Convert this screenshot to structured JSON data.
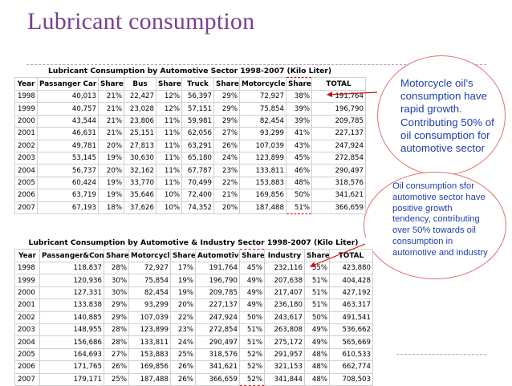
{
  "slide": {
    "title": "Lubricant consumption"
  },
  "table1": {
    "title": "Lubricant Consumption by Automotive Sector 1998-2007 (Kilo Liter)",
    "headers": [
      "Year",
      "Passanger Car",
      "Share",
      "Bus",
      "Share",
      "Truck",
      "Share",
      "Motorcycle",
      "Share",
      "TOTAL"
    ],
    "rows": [
      [
        "1998",
        "40,013",
        "21%",
        "22,427",
        "12%",
        "56,397",
        "29%",
        "72,927",
        "38%",
        "191,764"
      ],
      [
        "1999",
        "40,757",
        "21%",
        "23,028",
        "12%",
        "57,151",
        "29%",
        "75,854",
        "39%",
        "196,790"
      ],
      [
        "2000",
        "43,544",
        "21%",
        "23,806",
        "11%",
        "59,981",
        "29%",
        "82,454",
        "39%",
        "209,785"
      ],
      [
        "2001",
        "46,631",
        "21%",
        "25,151",
        "11%",
        "62,056",
        "27%",
        "93,299",
        "41%",
        "227,137"
      ],
      [
        "2002",
        "49,781",
        "20%",
        "27,813",
        "11%",
        "63,291",
        "26%",
        "107,039",
        "43%",
        "247,924"
      ],
      [
        "2003",
        "53,145",
        "19%",
        "30,630",
        "11%",
        "65,180",
        "24%",
        "123,899",
        "45%",
        "272,854"
      ],
      [
        "2004",
        "56,737",
        "20%",
        "32,162",
        "11%",
        "67,787",
        "23%",
        "133,811",
        "46%",
        "290,497"
      ],
      [
        "2005",
        "60,424",
        "19%",
        "33,770",
        "11%",
        "70,499",
        "22%",
        "153,883",
        "48%",
        "318,576"
      ],
      [
        "2006",
        "63,719",
        "19%",
        "35,646",
        "10%",
        "72,400",
        "21%",
        "169,856",
        "50%",
        "341,621"
      ],
      [
        "2007",
        "67,193",
        "18%",
        "37,626",
        "10%",
        "74,352",
        "20%",
        "187,488",
        "51%",
        "366,659"
      ]
    ]
  },
  "table2": {
    "title": "Lubricant Consumption by Automotive & Industry Sector 1998-2007 (Kilo Liter)",
    "headers": [
      "Year",
      "Passanger&Comm",
      "Share",
      "Motorcycle",
      "Share",
      "Automotive",
      "Share",
      "Industry",
      "Share",
      "TOTAL"
    ],
    "rows": [
      [
        "1998",
        "118,837",
        "28%",
        "72,927",
        "17%",
        "191,764",
        "45%",
        "232,116",
        "55%",
        "423,880"
      ],
      [
        "1999",
        "120,936",
        "30%",
        "75,854",
        "19%",
        "196,790",
        "49%",
        "207,638",
        "51%",
        "404,428"
      ],
      [
        "2000",
        "127,331",
        "30%",
        "82,454",
        "19%",
        "209,785",
        "49%",
        "217,407",
        "51%",
        "427,192"
      ],
      [
        "2001",
        "133,838",
        "29%",
        "93,299",
        "20%",
        "227,137",
        "49%",
        "236,180",
        "51%",
        "463,317"
      ],
      [
        "2002",
        "140,885",
        "29%",
        "107,039",
        "22%",
        "247,924",
        "50%",
        "243,617",
        "50%",
        "491,541"
      ],
      [
        "2003",
        "148,955",
        "28%",
        "123,899",
        "23%",
        "272,854",
        "51%",
        "263,808",
        "49%",
        "536,662"
      ],
      [
        "2004",
        "156,686",
        "28%",
        "133,811",
        "24%",
        "290,497",
        "51%",
        "275,172",
        "49%",
        "565,669"
      ],
      [
        "2005",
        "164,693",
        "27%",
        "153,883",
        "25%",
        "318,576",
        "52%",
        "291,957",
        "48%",
        "610,533"
      ],
      [
        "2006",
        "171,765",
        "26%",
        "169,856",
        "26%",
        "341,621",
        "52%",
        "321,153",
        "48%",
        "662,774"
      ],
      [
        "2007",
        "179,171",
        "25%",
        "187,488",
        "26%",
        "366,659",
        "52%",
        "341,844",
        "48%",
        "708,503"
      ]
    ]
  },
  "callout1": {
    "lines": [
      "Motorcycle oil’s",
      "consumption have",
      "rapid growth.",
      "Contributing 50% of",
      "oil consumption for",
      "automotive sector"
    ]
  },
  "callout2": {
    "lines": [
      "Oil consumption sfor",
      "automotive sector have",
      "positive growth",
      "tendency, contributing",
      "over 50% towards oil",
      "consumption in",
      "automotive and industry"
    ]
  },
  "colors": {
    "title": "#7a3f8f",
    "callout_text": "#1f3fae",
    "highlight": "#cc1111",
    "callout_border": "#e07070"
  }
}
